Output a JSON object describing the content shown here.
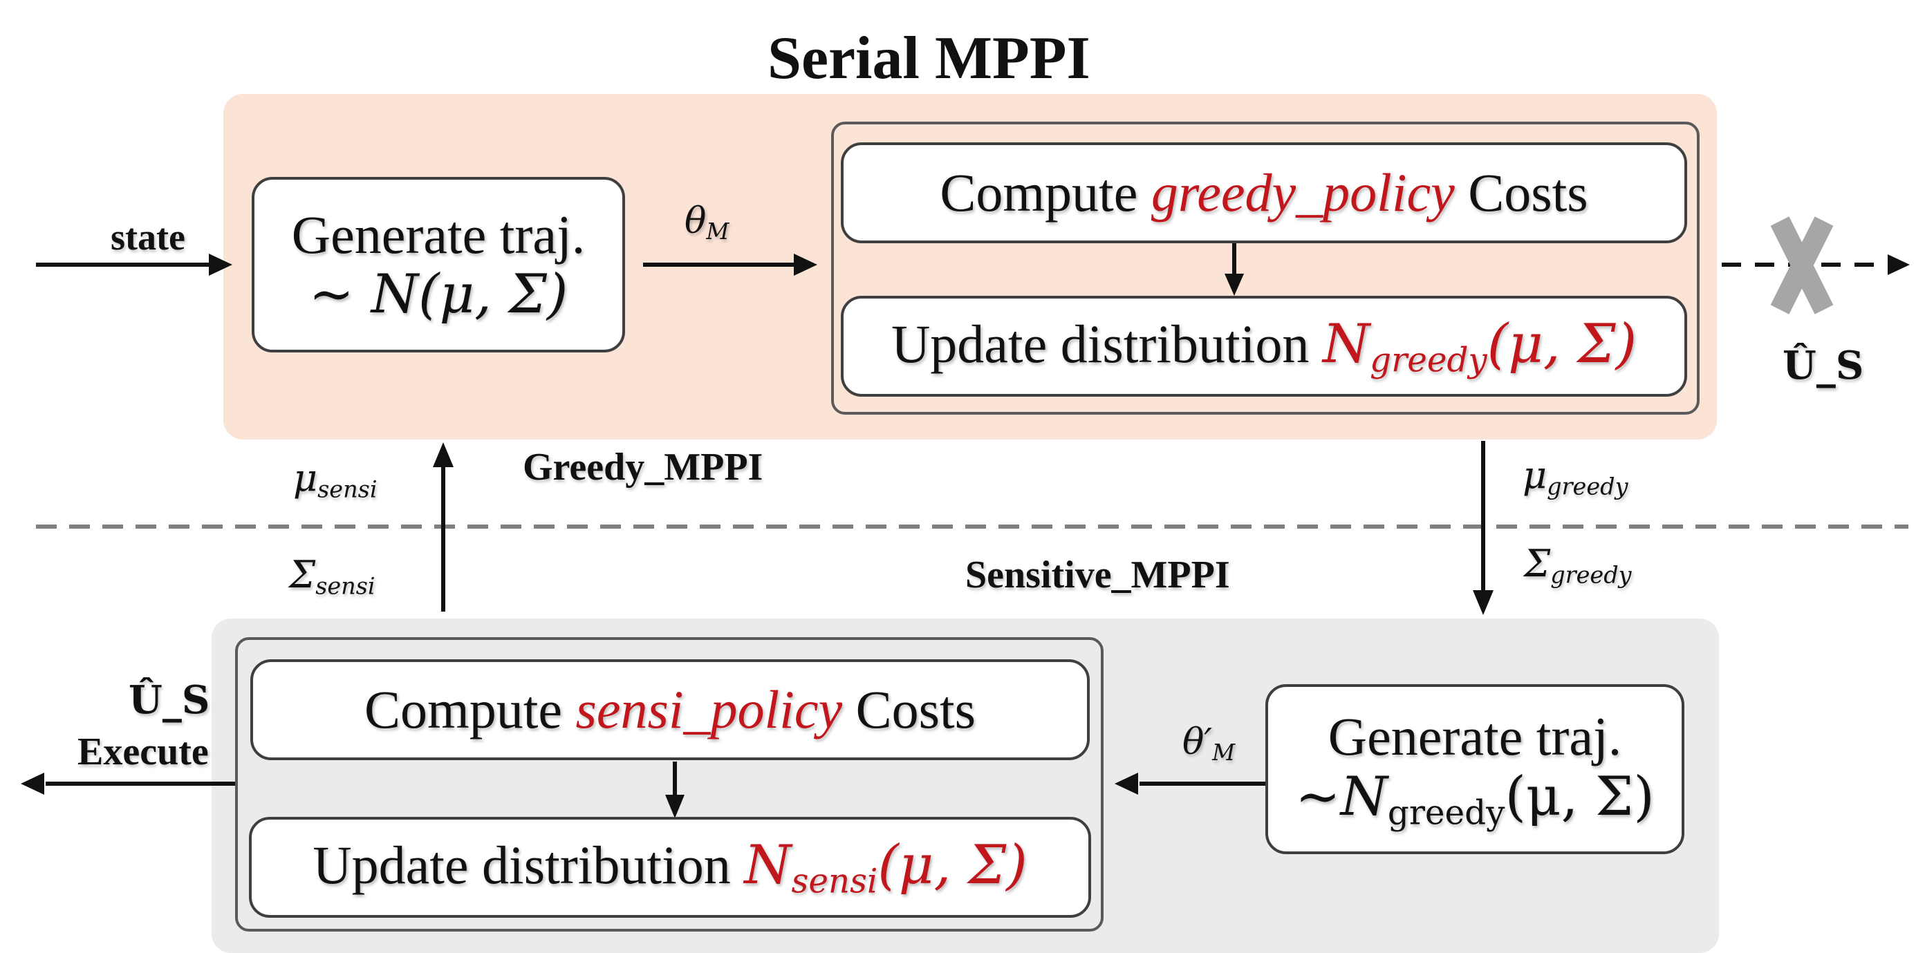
{
  "title": "Serial MPPI",
  "colors": {
    "greedy_panel": "#fbe3d6",
    "sensitive_panel": "#ebebeb",
    "highlight_red": "#c0161c",
    "dashed_line": "#7f7f7f",
    "x_mark": "#a6a6a6"
  },
  "greedy": {
    "panel_label": "Greedy_MPPI",
    "input_label": "state",
    "generate_box": {
      "line1": "Generate traj.",
      "line2": "~ N(μ, Σ)"
    },
    "theta_label": "θ_M",
    "compute_box": {
      "prefix": "Compute ",
      "policy": "greedy_policy",
      "suffix": " Costs"
    },
    "update_box": {
      "prefix": "Update distribution ",
      "dist": "N",
      "dist_sub": "greedy",
      "args": "(μ, Σ)"
    },
    "output_label": "Û_S"
  },
  "sensitive": {
    "panel_label": "Sensitive_MPPI",
    "generate_box": {
      "line1": "Generate traj.",
      "line2_prefix": "~N",
      "line2_sub": "greedy",
      "line2_args": "(μ, Σ)"
    },
    "theta_label": "θ′_M",
    "compute_box": {
      "prefix": "Compute ",
      "policy": "sensi_policy",
      "suffix": " Costs"
    },
    "update_box": {
      "prefix": "Update distribution ",
      "dist": "N",
      "dist_sub": "sensi",
      "args": "(μ, Σ)"
    },
    "output_label": "Û_S",
    "execute_label": "Execute"
  },
  "links": {
    "mu_sensi": {
      "sym": "μ",
      "sub": "sensi"
    },
    "sigma_sensi": {
      "sym": "Σ",
      "sub": "sensi"
    },
    "mu_greedy": {
      "sym": "μ",
      "sub": "greedy"
    },
    "sigma_greedy": {
      "sym": "Σ",
      "sub": "greedy"
    }
  }
}
